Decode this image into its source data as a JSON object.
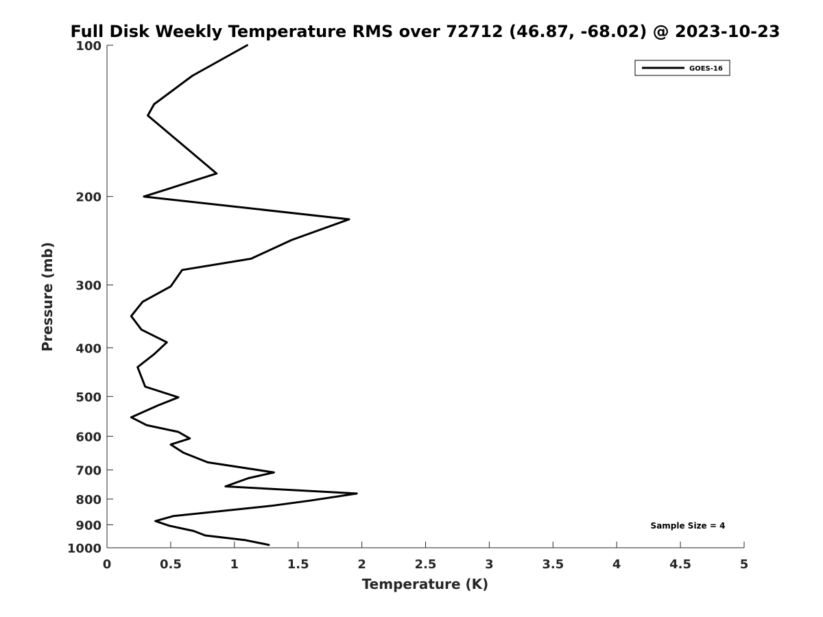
{
  "chart_data": {
    "type": "line",
    "title": "Full Disk Weekly Temperature RMS over 72712 (46.87, -68.02) @ 2023-10-23",
    "xlabel": "Temperature (K)",
    "ylabel": "Pressure (mb)",
    "xlim": [
      0,
      5
    ],
    "ylim": [
      100,
      1000
    ],
    "y_scale": "log",
    "y_reversed": true,
    "x_ticks": [
      "0",
      "0.5",
      "1",
      "1.5",
      "2",
      "2.5",
      "3",
      "3.5",
      "4",
      "4.5",
      "5"
    ],
    "x_tick_values": [
      0,
      0.5,
      1,
      1.5,
      2,
      2.5,
      3,
      3.5,
      4,
      4.5,
      5
    ],
    "y_ticks": [
      "100",
      "200",
      "300",
      "400",
      "500",
      "600",
      "700",
      "800",
      "900",
      "1000"
    ],
    "y_tick_values": [
      100,
      200,
      300,
      400,
      500,
      600,
      700,
      800,
      900,
      1000
    ],
    "grid": false,
    "legend_position": "top-right",
    "series": [
      {
        "name": "GOES-16",
        "color": "#000000",
        "x": [
          1.1,
          0.67,
          0.37,
          0.32,
          0.86,
          0.29,
          1.9,
          1.45,
          1.13,
          0.59,
          0.5,
          0.28,
          0.19,
          0.27,
          0.47,
          0.37,
          0.24,
          0.3,
          0.56,
          0.4,
          0.19,
          0.31,
          0.56,
          0.65,
          0.5,
          0.6,
          0.79,
          1.31,
          1.11,
          0.93,
          1.96,
          1.59,
          1.29,
          0.52,
          0.38,
          0.49,
          0.68,
          0.77,
          1.08,
          1.27
        ],
        "y": [
          100,
          115,
          131,
          138,
          180,
          200,
          222,
          244,
          266,
          280,
          302,
          324,
          346,
          368,
          390,
          412,
          437,
          478,
          502,
          521,
          550,
          570,
          588,
          606,
          623,
          647,
          676,
          708,
          727,
          755,
          780,
          806,
          825,
          865,
          885,
          904,
          926,
          945,
          965,
          987
        ]
      }
    ],
    "annotations": [
      "Sample Size = 4"
    ]
  }
}
